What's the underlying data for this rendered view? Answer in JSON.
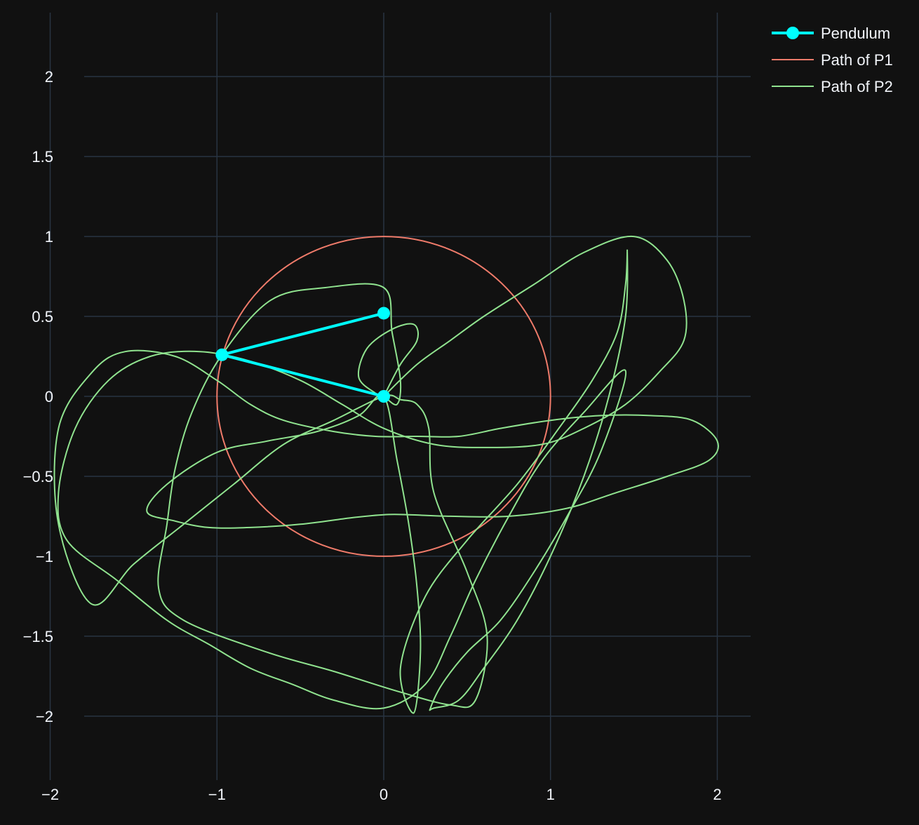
{
  "chart_data": {
    "type": "line",
    "title": "",
    "xlabel": "",
    "ylabel": "",
    "xlim": [
      -2.2,
      2.2
    ],
    "ylim": [
      -2.4,
      2.4
    ],
    "grid": true,
    "legend_placement": "top-right",
    "x_ticks": [
      -2,
      -1,
      0,
      1,
      2
    ],
    "x_tick_labels": [
      "−2",
      "−1",
      "0",
      "1",
      "2"
    ],
    "y_ticks": [
      2,
      1.5,
      1,
      0.5,
      0,
      -0.5,
      -1,
      -1.5,
      -2
    ],
    "y_tick_labels": [
      "2",
      "1.5",
      "1",
      "0.5",
      "0",
      "−0.5",
      "−1",
      "−1.5",
      "−2"
    ],
    "colors": {
      "background": "#111111",
      "grid": "#283442",
      "text": "#f2f5fa",
      "pendulum": "#00ffff",
      "path_p1": "#ef7b6a",
      "path_p2": "#90e38f"
    },
    "series": [
      {
        "name": "Pendulum",
        "mode": "lines+markers",
        "x": [
          0,
          -0.97,
          0.0
        ],
        "y": [
          0,
          0.26,
          0.52
        ]
      },
      {
        "name": "Path of P1",
        "mode": "lines",
        "shape": "circle",
        "center": [
          0,
          0
        ],
        "radius": 1
      },
      {
        "name": "Path of P2",
        "mode": "lines",
        "x": [
          0,
          0.1,
          0.2,
          0.18,
          0.05,
          -0.1,
          -0.15,
          -0.05,
          0,
          0.08,
          0.1,
          0.05,
          0,
          -0.35,
          -0.68,
          -0.97,
          -1.15,
          -1.25,
          -1.3,
          -1.35,
          -1.2,
          -0.7,
          -0.3,
          0.1,
          0.4,
          0.55,
          0.62,
          0.5,
          0.3,
          0.27,
          0.2,
          0.1,
          0.0,
          -0.3,
          -0.6,
          -0.9,
          -1.2,
          -1.5,
          -1.75,
          -1.95,
          -1.95,
          -1.75,
          -1.55,
          -1.25,
          -1.0,
          -0.8,
          -0.6,
          -0.3,
          -0.05,
          0.2,
          0.45,
          0.7,
          1.0,
          1.3,
          1.6,
          1.85,
          2.0,
          1.95,
          1.7,
          1.4,
          1.1,
          0.75,
          0.4,
          0.15,
          0.0,
          -0.2,
          -0.5,
          -0.8,
          -1.05,
          -1.25,
          -1.42,
          -1.3,
          -1.0,
          -0.7,
          -0.4,
          -0.15,
          0.0,
          0.08,
          0.15,
          0.2,
          0.22,
          0.18,
          0.1,
          0.25,
          0.5,
          0.8,
          1.05,
          1.25,
          1.4,
          1.45,
          1.46,
          1.45,
          1.35,
          1.2,
          1.0,
          0.8,
          0.6,
          0.45,
          0.3,
          0.28,
          0.35,
          0.5,
          0.7,
          0.9,
          1.1,
          1.3,
          1.45,
          1.2,
          0.95,
          0.75,
          0.55,
          0.4,
          0.25,
          0.0,
          -0.3,
          -0.55,
          -0.8,
          -1.05,
          -1.3,
          -1.6,
          -1.9,
          -1.95,
          -1.85,
          -1.65,
          -1.4,
          -1.1,
          -0.8,
          -0.5,
          -0.25,
          0.0,
          0.3,
          0.6,
          0.95,
          1.2,
          1.45,
          1.65,
          1.8,
          1.8,
          1.7,
          1.5,
          1.2,
          0.9,
          0.6,
          0.4,
          0.2,
          0.0
        ],
        "y": [
          0,
          0.2,
          0.35,
          0.45,
          0.42,
          0.3,
          0.12,
          0.02,
          0,
          -0.05,
          0.1,
          0.4,
          0.68,
          0.68,
          0.6,
          0.26,
          -0.1,
          -0.45,
          -0.8,
          -1.2,
          -1.4,
          -1.6,
          -1.72,
          -1.85,
          -1.93,
          -1.9,
          -1.5,
          -1.1,
          -0.6,
          -0.2,
          -0.05,
          -0.02,
          0,
          -0.15,
          -0.3,
          -0.55,
          -0.8,
          -1.05,
          -1.3,
          -0.8,
          -0.2,
          0.15,
          0.28,
          0.25,
          0.1,
          -0.05,
          -0.15,
          -0.22,
          -0.25,
          -0.25,
          -0.25,
          -0.2,
          -0.15,
          -0.12,
          -0.12,
          -0.15,
          -0.28,
          -0.4,
          -0.5,
          -0.6,
          -0.7,
          -0.75,
          -0.75,
          -0.74,
          -0.74,
          -0.76,
          -0.8,
          -0.82,
          -0.82,
          -0.78,
          -0.72,
          -0.55,
          -0.35,
          -0.28,
          -0.22,
          -0.12,
          0,
          -0.4,
          -0.8,
          -1.2,
          -1.6,
          -1.98,
          -1.7,
          -1.25,
          -0.9,
          -0.55,
          -0.2,
          0.1,
          0.4,
          0.7,
          0.91,
          0.5,
          0.0,
          -0.5,
          -1.0,
          -1.4,
          -1.7,
          -1.9,
          -1.95,
          -1.95,
          -1.8,
          -1.6,
          -1.4,
          -1.1,
          -0.75,
          -0.35,
          0.16,
          -0.1,
          -0.4,
          -0.75,
          -1.15,
          -1.5,
          -1.8,
          -1.95,
          -1.9,
          -1.8,
          -1.7,
          -1.55,
          -1.4,
          -1.15,
          -0.9,
          -0.6,
          -0.2,
          0.1,
          0.25,
          0.28,
          0.22,
          0.1,
          -0.05,
          -0.2,
          -0.3,
          -0.32,
          -0.3,
          -0.2,
          -0.05,
          0.15,
          0.35,
          0.6,
          0.85,
          1.0,
          0.9,
          0.7,
          0.5,
          0.35,
          0.2,
          0.0
        ]
      }
    ]
  }
}
